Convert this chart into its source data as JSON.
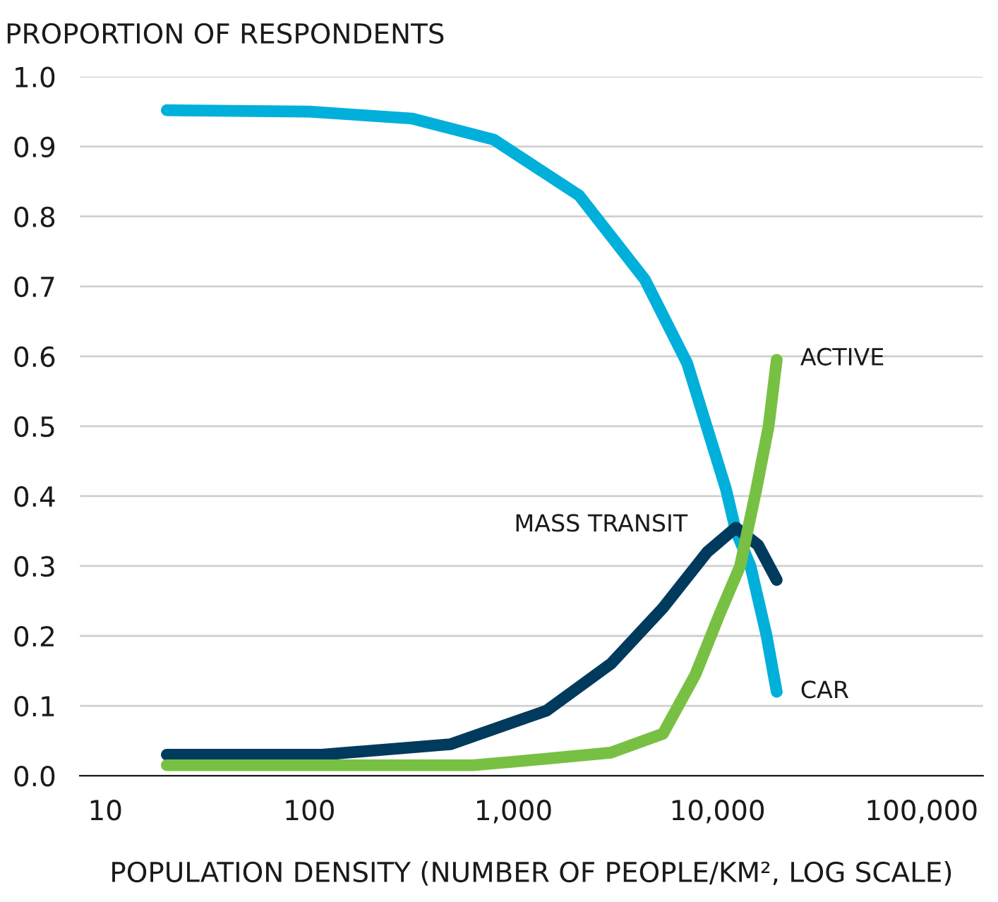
{
  "chart_data": {
    "type": "line",
    "ylabel": "PROPORTION OF RESPONDENTS",
    "xlabel": "POPULATION DENSITY (NUMBER OF PEOPLE/KM², LOG SCALE)",
    "log": "x",
    "grid": "y",
    "legend": false,
    "marker": "none",
    "line_style": "solid",
    "xlim": [
      7.5,
      200000
    ],
    "xticks": [
      10,
      100,
      {
        "value": 1000,
        "label": "1,000"
      },
      {
        "value": 10000,
        "label": "10,000"
      },
      {
        "value": 100000,
        "label": "100,000"
      }
    ],
    "ylim": [
      0,
      1.0
    ],
    "yticks": [
      {
        "value": 0,
        "label": "0.0"
      },
      0.1,
      0.2,
      0.3,
      0.4,
      0.5,
      0.6,
      0.7,
      0.8,
      0.9,
      {
        "value": 1,
        "label": "1.0"
      }
    ],
    "series": [
      {
        "name": "CAR",
        "color": "#00b0da",
        "x": [
          20,
          100,
          320,
          800,
          2100,
          4400,
          7100,
          11000,
          12300,
          14500,
          17400,
          19500
        ],
        "values": [
          0.952,
          0.95,
          0.94,
          0.91,
          0.83,
          0.71,
          0.59,
          0.41,
          0.35,
          0.3,
          0.2,
          0.12
        ]
      },
      {
        "name": "MASS TRANSIT",
        "color": "#003a5d",
        "x": [
          20,
          115,
          490,
          1450,
          3000,
          5400,
          8900,
          12300,
          15800,
          19500
        ],
        "values": [
          0.03,
          0.03,
          0.045,
          0.093,
          0.16,
          0.24,
          0.32,
          0.355,
          0.33,
          0.28
        ]
      },
      {
        "name": "ACTIVE",
        "color": "#78c043",
        "x": [
          20,
          630,
          1000,
          3000,
          5400,
          7800,
          10200,
          12900,
          15500,
          17800,
          19500
        ],
        "values": [
          0.015,
          0.015,
          0.02,
          0.033,
          0.06,
          0.145,
          0.23,
          0.3,
          0.41,
          0.5,
          0.595
        ]
      }
    ]
  }
}
